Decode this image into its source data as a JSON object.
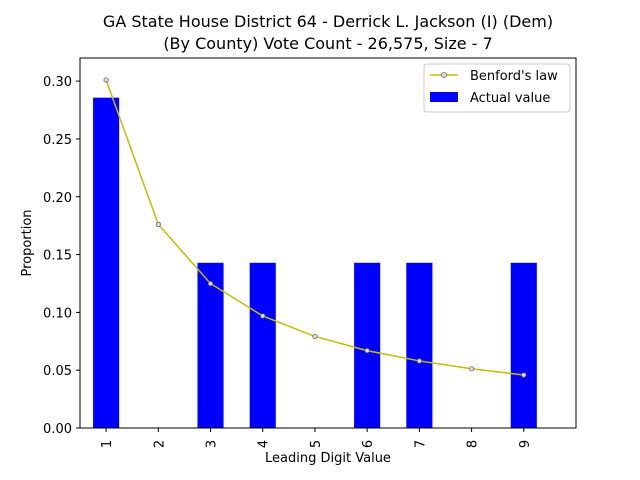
{
  "chart_data": {
    "type": "bar",
    "title_line1": "GA State House District 64 - Derrick L. Jackson (I) (Dem)",
    "title_line2": "(By County) Vote Count - 26,575, Size - 7",
    "xlabel": "Leading Digit Value",
    "ylabel": "Proportion",
    "categories": [
      "1",
      "2",
      "3",
      "4",
      "5",
      "6",
      "7",
      "8",
      "9"
    ],
    "ylim": [
      0,
      0.32
    ],
    "yticks": [
      "0.00",
      "0.05",
      "0.10",
      "0.15",
      "0.20",
      "0.25",
      "0.30"
    ],
    "series": [
      {
        "name": "Actual value",
        "type": "bar",
        "color": "#0000ff",
        "values": [
          0.2857,
          0,
          0.1429,
          0.1429,
          0,
          0.1429,
          0.1429,
          0,
          0.1429
        ]
      },
      {
        "name": "Benford's law",
        "type": "line",
        "color": "#bfbf00",
        "values": [
          0.301,
          0.1761,
          0.1249,
          0.0969,
          0.0792,
          0.0669,
          0.058,
          0.0512,
          0.0458
        ]
      }
    ],
    "legend_position": "top-right",
    "grid": false
  }
}
